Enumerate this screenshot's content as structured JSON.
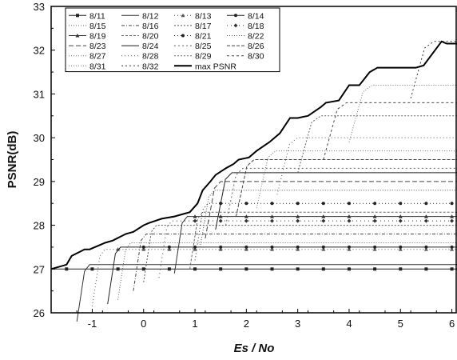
{
  "chart_data": {
    "type": "line",
    "title": "",
    "xlabel": "Es / No",
    "ylabel": "PSNR(dB)",
    "xlim": [
      -1.8,
      6.1
    ],
    "ylim": [
      26,
      33
    ],
    "xticks": [
      -1,
      0,
      1,
      2,
      3,
      4,
      5,
      6
    ],
    "yticks": [
      26,
      27,
      28,
      29,
      30,
      31,
      32,
      33
    ],
    "grid": false,
    "legend_position": "top-left",
    "legend_columns": 4,
    "series": [
      {
        "name": "8/11",
        "start": -1.8,
        "plateau": 27.0
      },
      {
        "name": "8/12",
        "start": -1.3,
        "plateau": 27.1
      },
      {
        "name": "8/13",
        "start": -1.0,
        "plateau": 27.45
      },
      {
        "name": "8/14",
        "start": -0.7,
        "plateau": 27.5
      },
      {
        "name": "8/15",
        "start": -0.5,
        "plateau": 27.6
      },
      {
        "name": "8/16",
        "start": -0.2,
        "plateau": 27.8
      },
      {
        "name": "8/17",
        "start": 0.0,
        "plateau": 28.0
      },
      {
        "name": "8/18",
        "start": 0.3,
        "plateau": 28.1
      },
      {
        "name": "8/19",
        "start": 0.6,
        "plateau": 28.2
      },
      {
        "name": "8/20",
        "start": 0.9,
        "plateau": 28.3
      },
      {
        "name": "8/21",
        "start": 1.0,
        "plateau": 28.5
      },
      {
        "name": "8/22",
        "start": 1.1,
        "plateau": 28.8
      },
      {
        "name": "8/23",
        "start": 1.2,
        "plateau": 29.0
      },
      {
        "name": "8/24",
        "start": 1.4,
        "plateau": 29.2
      },
      {
        "name": "8/25",
        "start": 1.6,
        "plateau": 29.3
      },
      {
        "name": "8/26",
        "start": 1.8,
        "plateau": 29.5
      },
      {
        "name": "8/27",
        "start": 2.2,
        "plateau": 29.7
      },
      {
        "name": "8/28",
        "start": 2.6,
        "plateau": 30.0
      },
      {
        "name": "8/29",
        "start": 3.0,
        "plateau": 30.5
      },
      {
        "name": "8/30",
        "start": 3.5,
        "plateau": 30.8
      },
      {
        "name": "8/31",
        "start": 4.0,
        "plateau": 31.2
      },
      {
        "name": "8/32",
        "start": 5.2,
        "plateau": 32.2
      }
    ],
    "max_psnr": {
      "name": "max PSNR",
      "x": [
        -1.8,
        -1.5,
        -1.4,
        -1.15,
        -1.05,
        -0.75,
        -0.6,
        -0.35,
        -0.2,
        0.0,
        0.1,
        0.35,
        0.6,
        0.75,
        0.9,
        1.05,
        1.15,
        1.3,
        1.4,
        1.6,
        1.75,
        1.85,
        2.05,
        2.2,
        2.45,
        2.65,
        2.85,
        3.0,
        3.2,
        3.45,
        3.55,
        3.8,
        4.0,
        4.2,
        4.4,
        4.55,
        4.9,
        5.3,
        5.45,
        5.8,
        5.9,
        6.1
      ],
      "y": [
        27.0,
        27.1,
        27.3,
        27.45,
        27.45,
        27.6,
        27.65,
        27.8,
        27.85,
        28.0,
        28.05,
        28.15,
        28.2,
        28.25,
        28.3,
        28.5,
        28.8,
        29.0,
        29.15,
        29.3,
        29.4,
        29.5,
        29.55,
        29.7,
        29.9,
        30.1,
        30.45,
        30.45,
        30.5,
        30.7,
        30.8,
        30.85,
        31.2,
        31.2,
        31.5,
        31.6,
        31.6,
        31.6,
        31.65,
        32.2,
        32.15,
        32.15
      ]
    }
  }
}
